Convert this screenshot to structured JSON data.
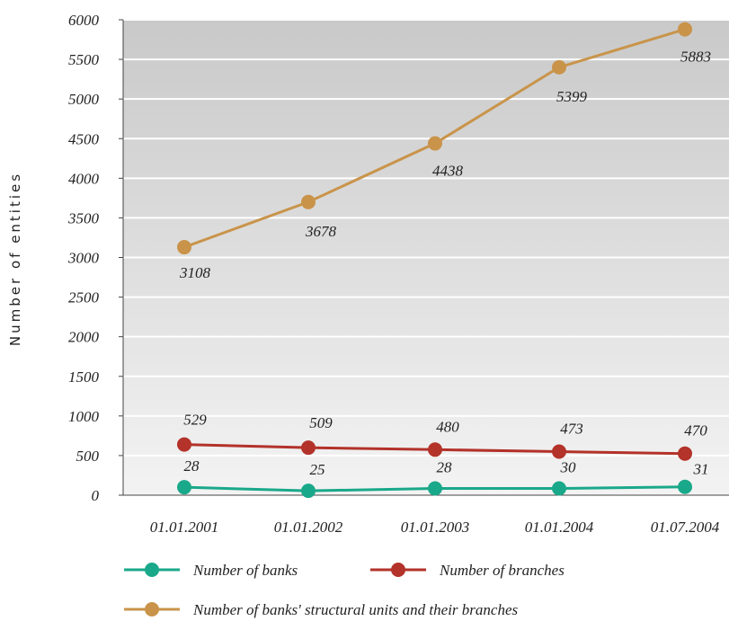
{
  "chart_data": {
    "type": "line",
    "title": "",
    "xlabel": "",
    "ylabel": "Number of entities",
    "categories": [
      "01.01.2001",
      "01.01.2002",
      "01.01.2003",
      "01.01.2004",
      "01.07.2004"
    ],
    "ylim": [
      0,
      6000
    ],
    "yticks": [
      "0",
      "500",
      "1000",
      "1500",
      "2000",
      "2500",
      "3000",
      "3500",
      "4000",
      "4500",
      "5000",
      "5500",
      "6000"
    ],
    "grid": true,
    "legend_position": "bottom",
    "series": [
      {
        "name": "Number of banks",
        "color": "#1aa88a",
        "values": [
          28,
          25,
          28,
          30,
          31
        ],
        "plot_values": [
          100,
          55,
          85,
          85,
          105
        ],
        "labels": [
          "28",
          "25",
          "28",
          "30",
          "31"
        ]
      },
      {
        "name": "Number of branches",
        "color": "#b3322a",
        "values": [
          529,
          509,
          480,
          473,
          470
        ],
        "plot_values": [
          640,
          600,
          575,
          550,
          525
        ],
        "labels": [
          "529",
          "509",
          "480",
          "473",
          "470"
        ]
      },
      {
        "name": "Number of banks' structural units and their branches",
        "color": "#c9944a",
        "values": [
          3108,
          3678,
          4438,
          5399,
          5883
        ],
        "plot_values": [
          3130,
          3700,
          4440,
          5400,
          5880
        ],
        "labels": [
          "3108",
          "3678",
          "4438",
          "5399",
          "5883"
        ]
      }
    ]
  }
}
